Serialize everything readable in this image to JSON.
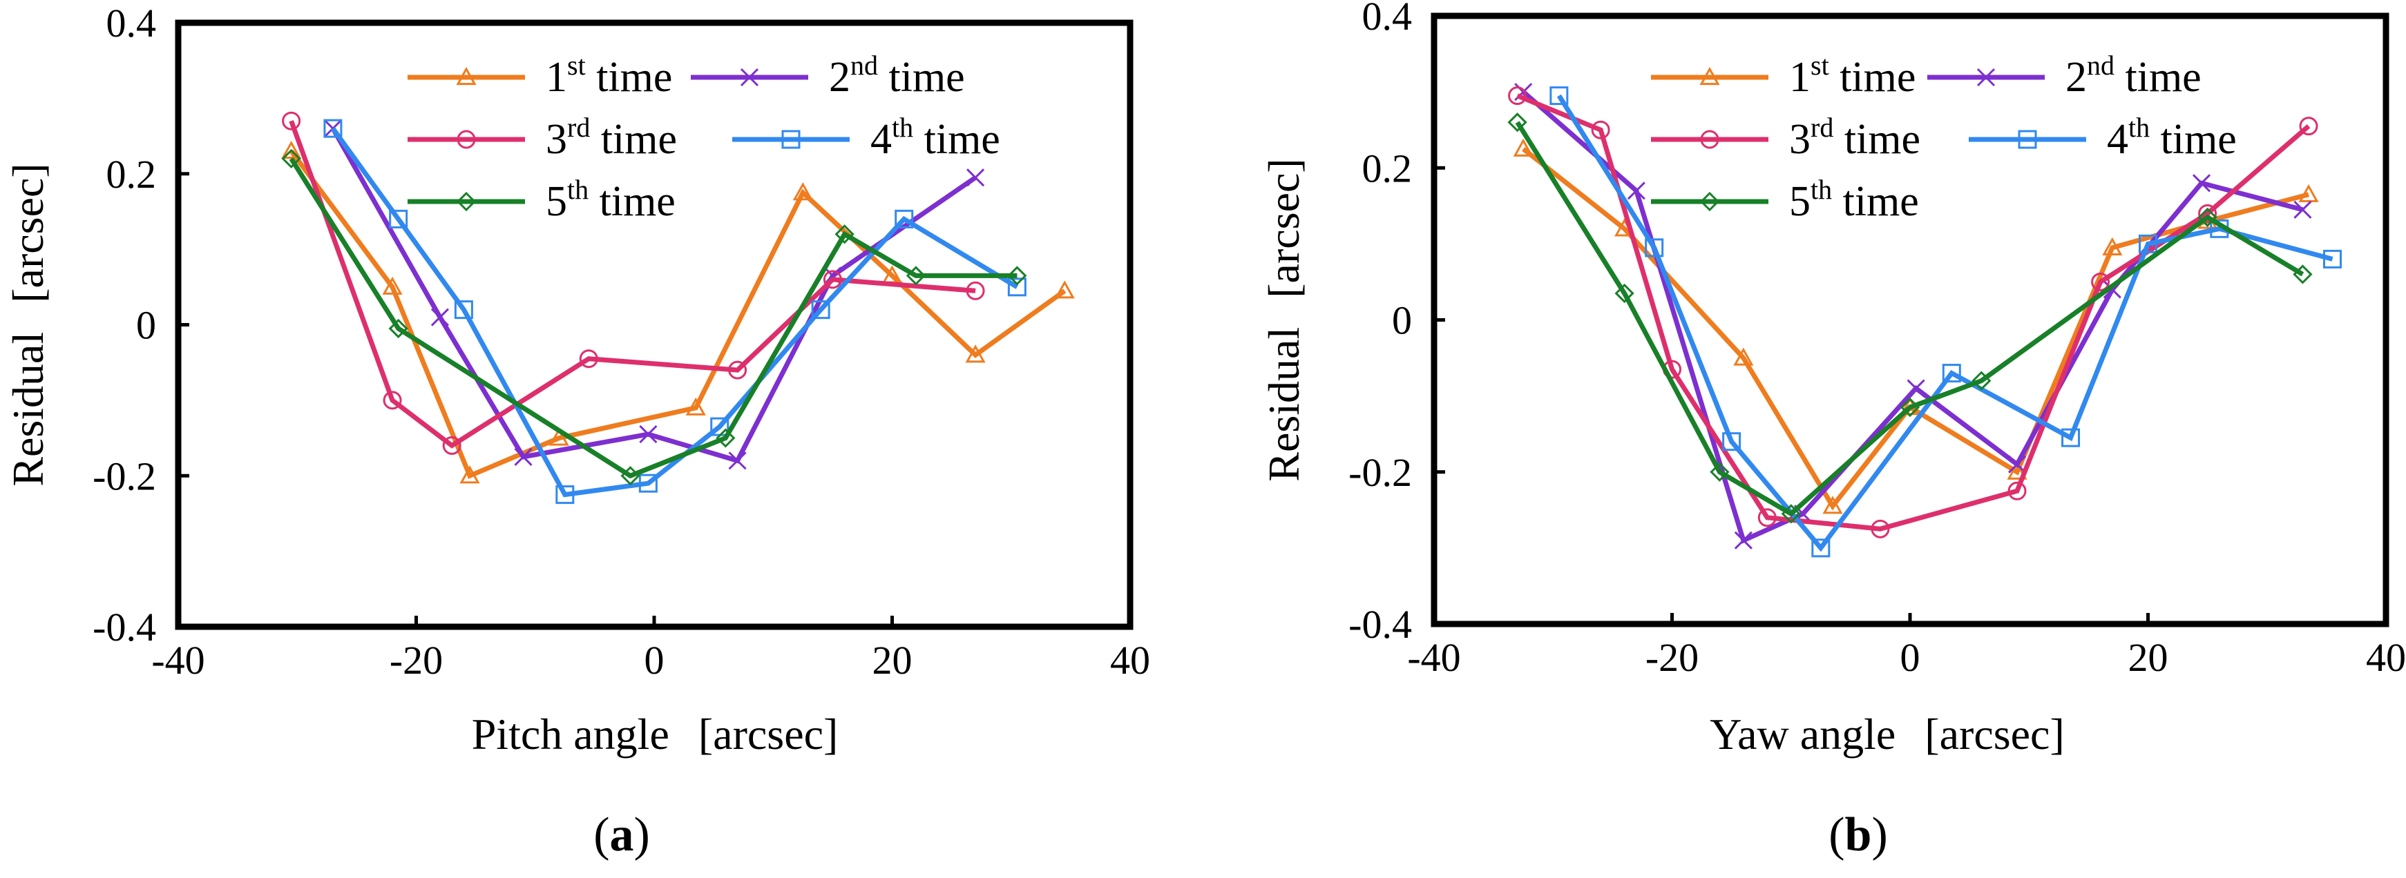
{
  "colors": {
    "run1": "#ef7c1e",
    "run2": "#7d2fd0",
    "run3": "#de2f6d",
    "run4": "#3189ef",
    "run5": "#188028",
    "axis": "#000000"
  },
  "chart_data": [
    {
      "type": "line",
      "panel": "a",
      "panel_label": {
        "open": "(",
        "letter": "a",
        "close": ")"
      },
      "xlabel": {
        "name": "Pitch angle",
        "unit": "[arcsec]"
      },
      "ylabel": {
        "name": "Residual",
        "unit": "[arcsec]"
      },
      "xlim": [
        -40,
        40
      ],
      "ylim": [
        -0.4,
        0.4
      ],
      "xticks": [
        -40,
        -20,
        0,
        20,
        40
      ],
      "yticks": [
        -0.4,
        -0.2,
        0,
        0.2,
        0.4
      ],
      "ytick_labels": [
        "-0.4",
        "-0.2",
        "0",
        "0.2",
        "0.4"
      ],
      "legend_position": "top-right",
      "series": [
        {
          "name": "1st time",
          "ord": "1",
          "sup": "st",
          "rest": " time",
          "color_key": "run1",
          "marker": "triangle",
          "x": [
            -30.5,
            -22,
            -15.5,
            -8,
            3.5,
            12.5,
            20,
            27,
            34.5
          ],
          "y": [
            0.23,
            0.05,
            -0.2,
            -0.15,
            -0.11,
            0.175,
            0.065,
            -0.04,
            0.045
          ]
        },
        {
          "name": "2nd time",
          "ord": "2",
          "sup": "nd",
          "rest": " time",
          "color_key": "run2",
          "marker": "x",
          "x": [
            -27,
            -18,
            -11,
            -0.5,
            7,
            15,
            27
          ],
          "y": [
            0.26,
            0.01,
            -0.175,
            -0.145,
            -0.18,
            0.065,
            0.195
          ]
        },
        {
          "name": "3rd time",
          "ord": "3",
          "sup": "rd",
          "rest": " time",
          "color_key": "run3",
          "marker": "circle",
          "x": [
            -30.5,
            -22,
            -17,
            -5.5,
            7,
            15,
            27
          ],
          "y": [
            0.27,
            -0.1,
            -0.16,
            -0.045,
            -0.06,
            0.06,
            0.045
          ]
        },
        {
          "name": "4th time",
          "ord": "4",
          "sup": "th",
          "rest": " time",
          "color_key": "run4",
          "marker": "square",
          "x": [
            -27,
            -21.5,
            -16,
            -7.5,
            -0.5,
            5.5,
            14,
            21,
            30.5
          ],
          "y": [
            0.26,
            0.14,
            0.02,
            -0.225,
            -0.21,
            -0.135,
            0.02,
            0.14,
            0.05
          ]
        },
        {
          "name": "5th time",
          "ord": "5",
          "sup": "th",
          "rest": " time",
          "color_key": "run5",
          "marker": "diamond",
          "x": [
            -30.5,
            -21.5,
            -2,
            6,
            16,
            22,
            30.5
          ],
          "y": [
            0.22,
            -0.005,
            -0.2,
            -0.15,
            0.12,
            0.065,
            0.065
          ]
        }
      ]
    },
    {
      "type": "line",
      "panel": "b",
      "panel_label": {
        "open": "(",
        "letter": "b",
        "close": ")"
      },
      "xlabel": {
        "name": "Yaw angle",
        "unit": "[arcsec]"
      },
      "ylabel": {
        "name": "Residual",
        "unit": "[arcsec]"
      },
      "xlim": [
        -40,
        40
      ],
      "ylim": [
        -0.4,
        0.4
      ],
      "xticks": [
        -40,
        -20,
        0,
        20,
        40
      ],
      "yticks": [
        -0.4,
        -0.2,
        0,
        0.2,
        0.4
      ],
      "ytick_labels": [
        "-0.4",
        "-0.2",
        "0",
        "0.2",
        "0.4"
      ],
      "legend_position": "top-right",
      "series": [
        {
          "name": "1st time",
          "ord": "1",
          "sup": "st",
          "rest": " time",
          "color_key": "run1",
          "marker": "triangle",
          "x": [
            -32.5,
            -24,
            -14,
            -6.5,
            0,
            9,
            17,
            25,
            33.5
          ],
          "y": [
            0.225,
            0.12,
            -0.05,
            -0.245,
            -0.115,
            -0.2,
            0.095,
            0.13,
            0.165
          ]
        },
        {
          "name": "2nd time",
          "ord": "2",
          "sup": "nd",
          "rest": " time",
          "color_key": "run2",
          "marker": "x",
          "x": [
            -32.5,
            -23,
            -14,
            -9,
            0.5,
            9,
            17,
            24.5,
            33
          ],
          "y": [
            0.3,
            0.17,
            -0.29,
            -0.255,
            -0.09,
            -0.19,
            0.04,
            0.18,
            0.145
          ]
        },
        {
          "name": "3rd time",
          "ord": "3",
          "sup": "rd",
          "rest": " time",
          "color_key": "run3",
          "marker": "circle",
          "x": [
            -33,
            -26,
            -20,
            -12,
            -2.5,
            9,
            16,
            25,
            33.5
          ],
          "y": [
            0.295,
            0.25,
            -0.065,
            -0.26,
            -0.275,
            -0.225,
            0.05,
            0.14,
            0.255
          ]
        },
        {
          "name": "4th time",
          "ord": "4",
          "sup": "th",
          "rest": " time",
          "color_key": "run4",
          "marker": "square",
          "x": [
            -29.5,
            -21.5,
            -15,
            -7.5,
            3.5,
            13.5,
            20,
            26,
            35.5
          ],
          "y": [
            0.295,
            0.095,
            -0.16,
            -0.3,
            -0.07,
            -0.155,
            0.1,
            0.12,
            0.08
          ]
        },
        {
          "name": "5th time",
          "ord": "5",
          "sup": "th",
          "rest": " time",
          "color_key": "run5",
          "marker": "diamond",
          "x": [
            -33,
            -24,
            -16,
            -10,
            0,
            6,
            25,
            33
          ],
          "y": [
            0.26,
            0.035,
            -0.2,
            -0.255,
            -0.115,
            -0.08,
            0.135,
            0.06
          ]
        }
      ]
    }
  ]
}
